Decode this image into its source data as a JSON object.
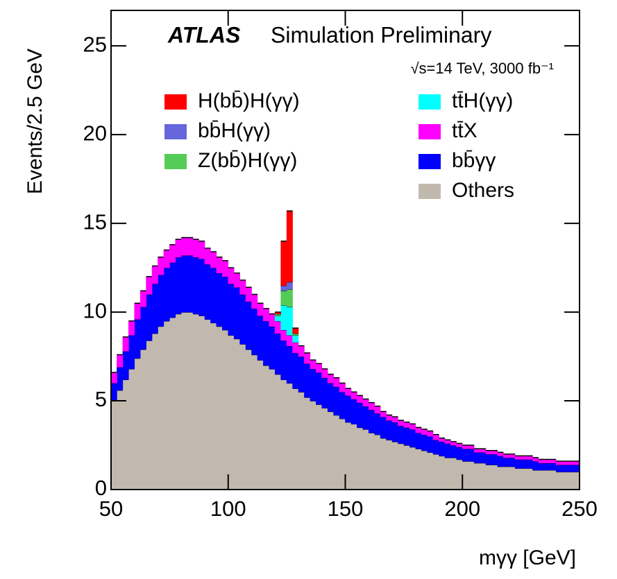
{
  "chart_data": {
    "type": "stacked-histogram",
    "title": "ATLAS",
    "subtitle": "Simulation Preliminary",
    "annotation": "√s=14 TeV, 3000 fb⁻¹",
    "xlabel": "mγγ [GeV]",
    "ylabel": "Events/2.5 GeV",
    "xlim": [
      50,
      250
    ],
    "ylim": [
      0,
      27
    ],
    "xticks": [
      50,
      100,
      150,
      200,
      250
    ],
    "yticks": [
      0,
      5,
      10,
      15,
      20,
      25
    ],
    "bins": [
      50,
      52.5,
      55,
      57.5,
      60,
      62.5,
      65,
      67.5,
      70,
      72.5,
      75,
      77.5,
      80,
      82.5,
      85,
      87.5,
      90,
      92.5,
      95,
      97.5,
      100,
      102.5,
      105,
      107.5,
      110,
      112.5,
      115,
      117.5,
      120,
      122.5,
      125,
      127.5,
      130,
      132.5,
      135,
      137.5,
      140,
      142.5,
      145,
      147.5,
      150,
      152.5,
      155,
      157.5,
      160,
      162.5,
      165,
      167.5,
      170,
      172.5,
      175,
      177.5,
      180,
      182.5,
      185,
      187.5,
      190,
      192.5,
      195,
      197.5,
      200,
      202.5,
      205,
      207.5,
      210,
      212.5,
      215,
      217.5,
      220,
      222.5,
      225,
      227.5,
      230,
      232.5,
      235,
      237.5,
      240,
      242.5,
      245,
      247.5,
      250
    ],
    "series": [
      {
        "name": "Others",
        "color": "#c2b9ae",
        "values": [
          5.0,
          5.6,
          6.2,
          6.8,
          7.4,
          7.9,
          8.4,
          8.8,
          9.2,
          9.5,
          9.7,
          9.9,
          10.0,
          10.0,
          9.9,
          9.8,
          9.6,
          9.4,
          9.2,
          9.0,
          8.7,
          8.5,
          8.2,
          7.9,
          7.6,
          7.3,
          7.0,
          6.8,
          6.5,
          6.2,
          6.0,
          5.7,
          5.5,
          5.2,
          5.0,
          4.8,
          4.6,
          4.4,
          4.2,
          4.0,
          3.8,
          3.7,
          3.5,
          3.4,
          3.2,
          3.1,
          2.9,
          2.8,
          2.7,
          2.6,
          2.5,
          2.4,
          2.3,
          2.2,
          2.1,
          2.0,
          1.9,
          1.8,
          1.8,
          1.7,
          1.6,
          1.6,
          1.5,
          1.5,
          1.4,
          1.4,
          1.3,
          1.3,
          1.3,
          1.2,
          1.2,
          1.2,
          1.1,
          1.1,
          1.1,
          1.1,
          1.0,
          1.0,
          1.0,
          1.0
        ]
      },
      {
        "name": "bb̄γγ",
        "color": "#0000ff",
        "values": [
          1.0,
          1.3,
          1.6,
          1.9,
          2.2,
          2.4,
          2.6,
          2.8,
          2.9,
          3.0,
          3.1,
          3.2,
          3.2,
          3.2,
          3.2,
          3.2,
          3.1,
          3.1,
          3.0,
          3.0,
          2.9,
          2.9,
          2.8,
          2.7,
          2.6,
          2.5,
          2.5,
          2.4,
          2.3,
          2.2,
          2.1,
          2.0,
          2.0,
          1.9,
          1.8,
          1.8,
          1.7,
          1.6,
          1.6,
          1.5,
          1.5,
          1.4,
          1.4,
          1.3,
          1.3,
          1.2,
          1.2,
          1.1,
          1.1,
          1.0,
          1.0,
          1.0,
          0.9,
          0.9,
          0.9,
          0.8,
          0.8,
          0.8,
          0.7,
          0.7,
          0.7,
          0.7,
          0.6,
          0.6,
          0.6,
          0.6,
          0.6,
          0.5,
          0.5,
          0.5,
          0.5,
          0.5,
          0.5,
          0.4,
          0.4,
          0.4,
          0.4,
          0.4,
          0.4,
          0.4
        ]
      },
      {
        "name": "tt̄X",
        "color": "#ff00ff",
        "values": [
          0.6,
          0.7,
          0.8,
          0.8,
          0.9,
          0.9,
          1.0,
          1.0,
          1.0,
          1.0,
          1.0,
          1.0,
          1.0,
          1.0,
          1.0,
          1.0,
          0.9,
          0.9,
          0.9,
          0.9,
          0.9,
          0.8,
          0.8,
          0.8,
          0.8,
          0.7,
          0.7,
          0.7,
          0.7,
          0.6,
          0.6,
          0.6,
          0.6,
          0.6,
          0.5,
          0.5,
          0.5,
          0.5,
          0.5,
          0.5,
          0.4,
          0.4,
          0.4,
          0.4,
          0.4,
          0.4,
          0.3,
          0.3,
          0.3,
          0.3,
          0.3,
          0.3,
          0.3,
          0.3,
          0.3,
          0.3,
          0.2,
          0.2,
          0.2,
          0.2,
          0.2,
          0.2,
          0.2,
          0.2,
          0.2,
          0.2,
          0.2,
          0.2,
          0.2,
          0.2,
          0.2,
          0.2,
          0.2,
          0.2,
          0.2,
          0.2,
          0.2,
          0.2,
          0.2,
          0.2
        ]
      },
      {
        "name": "tt̄H(γγ)",
        "color": "#00ffff",
        "values": [
          0,
          0,
          0,
          0,
          0,
          0,
          0,
          0,
          0,
          0,
          0,
          0,
          0,
          0,
          0,
          0,
          0,
          0,
          0,
          0,
          0,
          0,
          0,
          0,
          0,
          0,
          0,
          0,
          0.3,
          1.4,
          1.6,
          0.4,
          0,
          0,
          0,
          0,
          0,
          0,
          0,
          0,
          0,
          0,
          0,
          0,
          0,
          0,
          0,
          0,
          0,
          0,
          0,
          0,
          0,
          0,
          0,
          0,
          0,
          0,
          0,
          0,
          0,
          0,
          0,
          0,
          0,
          0,
          0,
          0,
          0,
          0,
          0,
          0,
          0,
          0,
          0,
          0,
          0,
          0,
          0,
          0
        ]
      },
      {
        "name": "Z(bb̄)H(γγ)",
        "color": "#55cc55",
        "values": [
          0,
          0,
          0,
          0,
          0,
          0,
          0,
          0,
          0,
          0,
          0,
          0,
          0,
          0,
          0,
          0,
          0,
          0,
          0,
          0,
          0,
          0,
          0,
          0,
          0,
          0,
          0,
          0,
          0.1,
          0.8,
          1.0,
          0.1,
          0,
          0,
          0,
          0,
          0,
          0,
          0,
          0,
          0,
          0,
          0,
          0,
          0,
          0,
          0,
          0,
          0,
          0,
          0,
          0,
          0,
          0,
          0,
          0,
          0,
          0,
          0,
          0,
          0,
          0,
          0,
          0,
          0,
          0,
          0,
          0,
          0,
          0,
          0,
          0,
          0,
          0,
          0,
          0,
          0,
          0,
          0,
          0
        ]
      },
      {
        "name": "bb̄H(γγ)",
        "color": "#6666dd",
        "values": [
          0,
          0,
          0,
          0,
          0,
          0,
          0,
          0,
          0,
          0,
          0,
          0,
          0,
          0,
          0,
          0,
          0,
          0,
          0,
          0,
          0,
          0,
          0,
          0,
          0,
          0,
          0,
          0,
          0,
          0.3,
          0.4,
          0,
          0,
          0,
          0,
          0,
          0,
          0,
          0,
          0,
          0,
          0,
          0,
          0,
          0,
          0,
          0,
          0,
          0,
          0,
          0,
          0,
          0,
          0,
          0,
          0,
          0,
          0,
          0,
          0,
          0,
          0,
          0,
          0,
          0,
          0,
          0,
          0,
          0,
          0,
          0,
          0,
          0,
          0,
          0,
          0,
          0,
          0,
          0,
          0
        ]
      },
      {
        "name": "H(bb̄)H(γγ)",
        "color": "#ff0000",
        "values": [
          0,
          0,
          0,
          0,
          0,
          0,
          0,
          0,
          0,
          0,
          0,
          0,
          0,
          0,
          0,
          0,
          0,
          0,
          0,
          0,
          0,
          0,
          0,
          0,
          0,
          0,
          0,
          0,
          0.1,
          2.5,
          4.0,
          0.3,
          0,
          0,
          0,
          0,
          0,
          0,
          0,
          0,
          0,
          0,
          0,
          0,
          0,
          0,
          0,
          0,
          0,
          0,
          0,
          0,
          0,
          0,
          0,
          0,
          0,
          0,
          0,
          0,
          0,
          0,
          0,
          0,
          0,
          0,
          0,
          0,
          0,
          0,
          0,
          0,
          0,
          0,
          0,
          0,
          0,
          0,
          0,
          0
        ]
      }
    ]
  }
}
